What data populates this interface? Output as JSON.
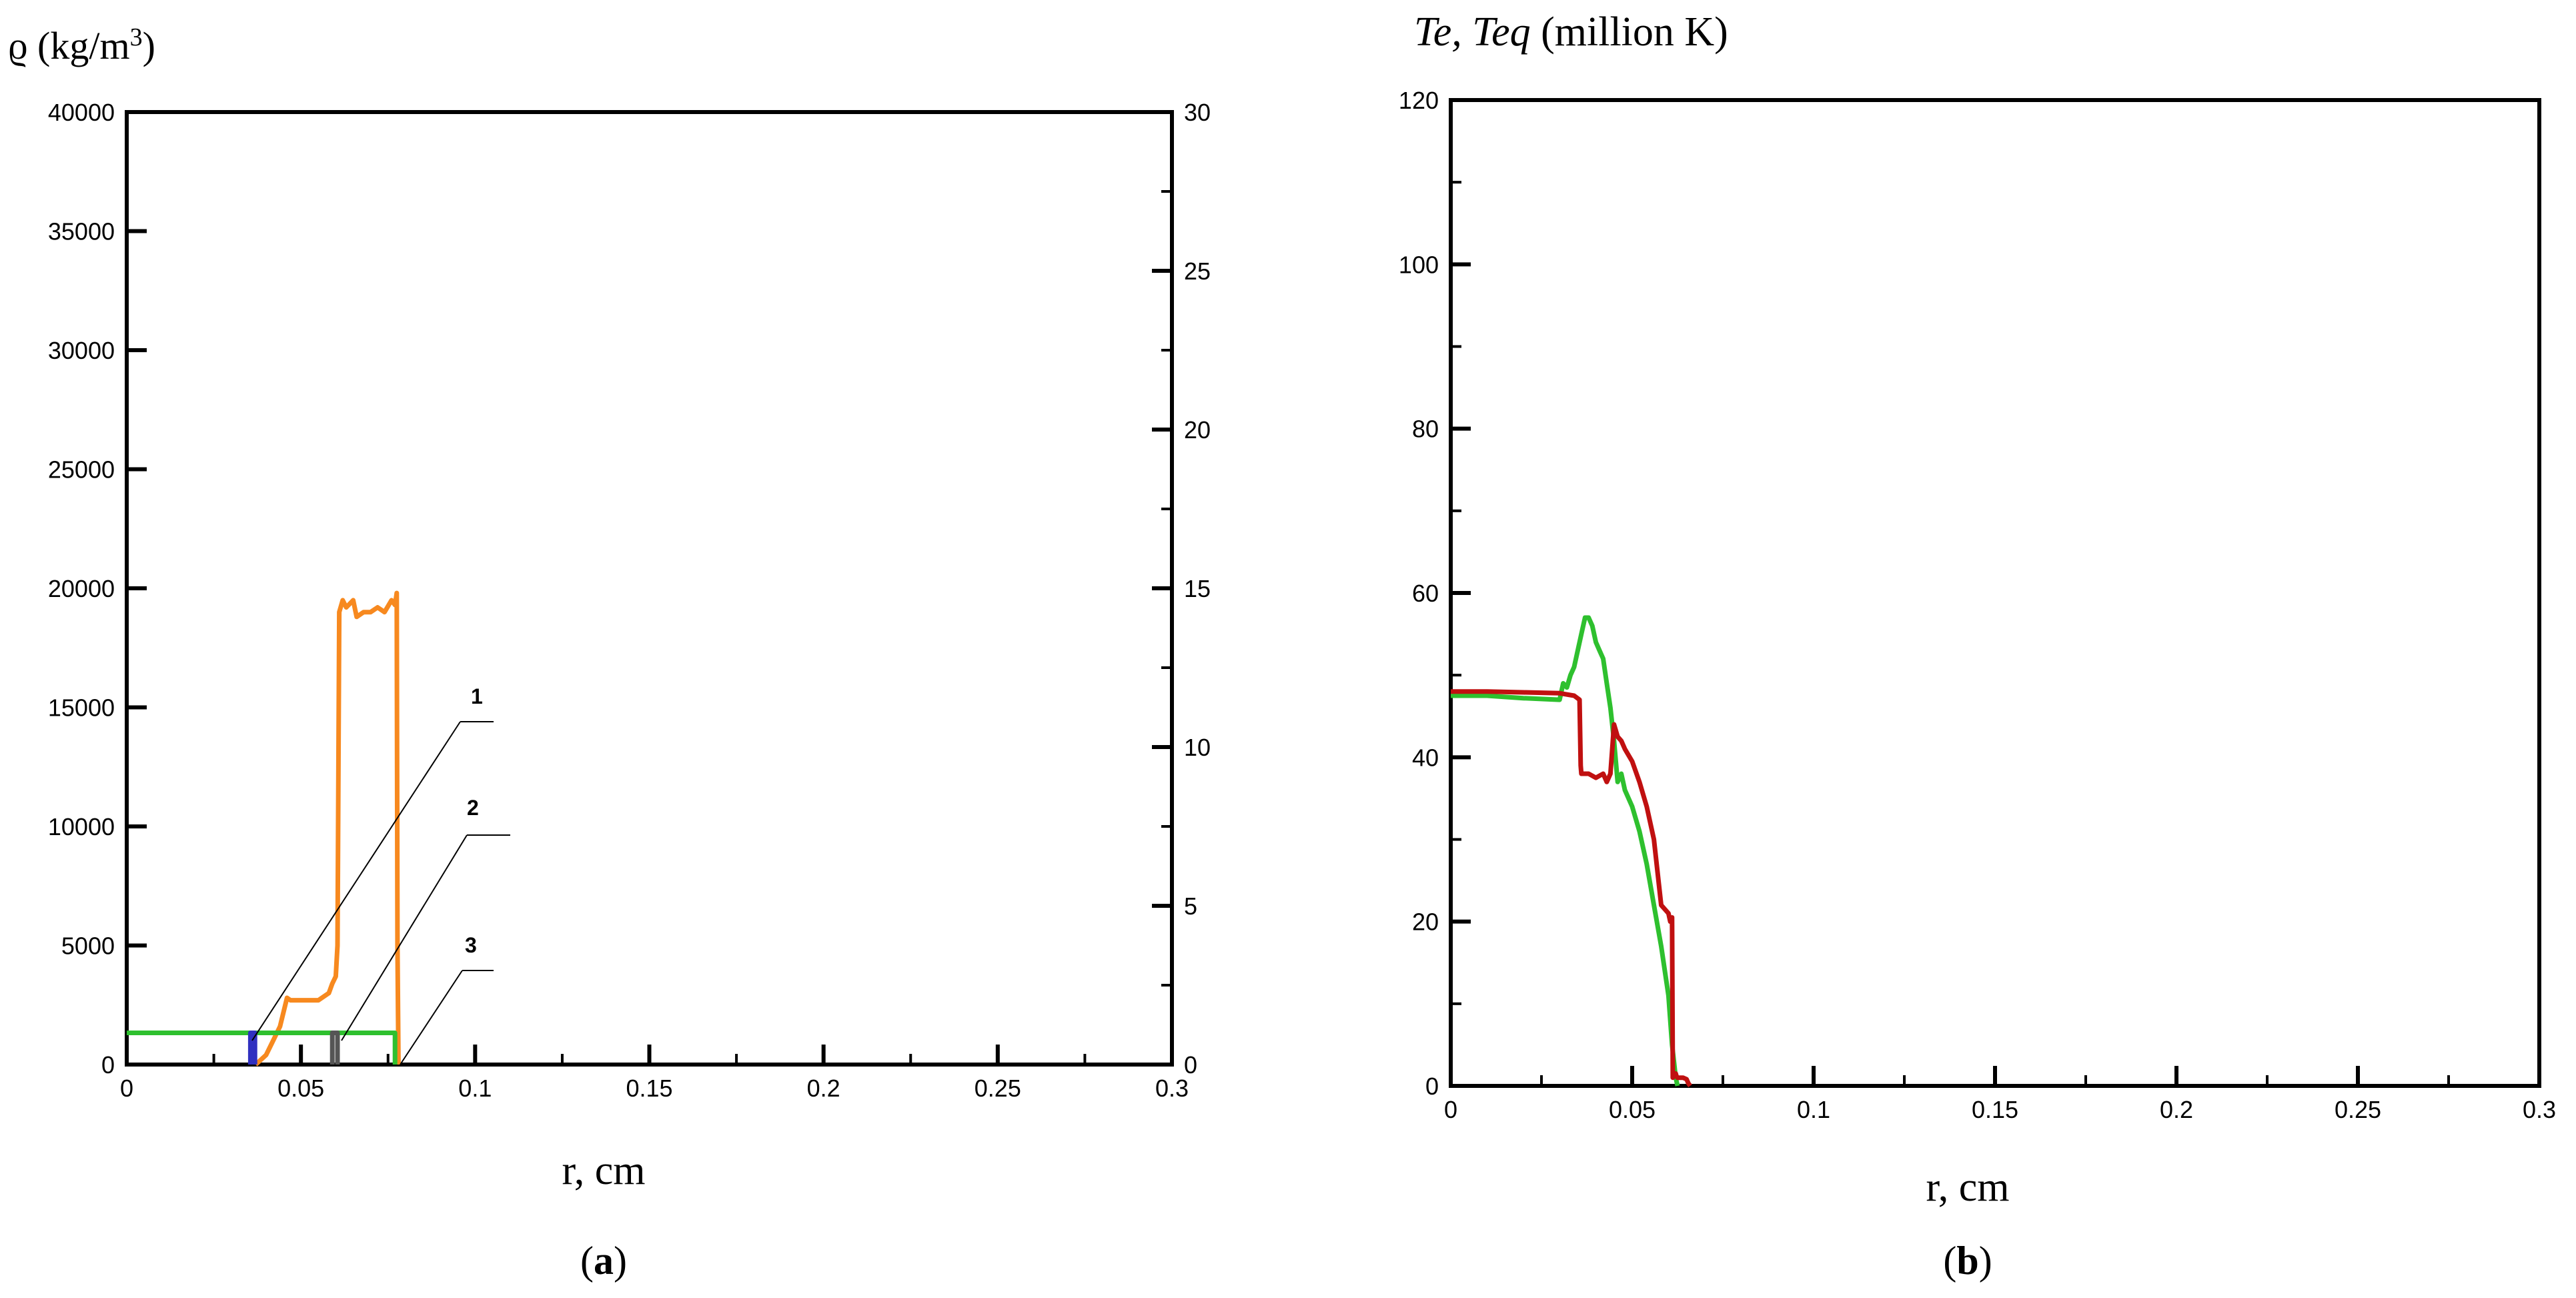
{
  "chart_data": [
    {
      "panel_label": "(a)",
      "panel_letter": "a",
      "type": "line",
      "ylabel": "ϱ (kg/m³)",
      "ylabel_main": "ϱ (kg/m",
      "ylabel_sup": "3",
      "ylabel_end": ")",
      "xlabel": "r, cm",
      "xlim": [
        0,
        0.3
      ],
      "ylim": [
        0,
        40000
      ],
      "y2lim": [
        0,
        30
      ],
      "xticks": [
        "0",
        "0.05",
        "0.1",
        "0.15",
        "0.2",
        "0.25",
        "0.3"
      ],
      "yticks": [
        "0",
        "5000",
        "10000",
        "15000",
        "20000",
        "25000",
        "30000",
        "35000",
        "40000"
      ],
      "y2ticks": [
        "0",
        "5",
        "10",
        "15",
        "20",
        "25",
        "30"
      ],
      "annotations": [
        "1",
        "2",
        "3"
      ],
      "series": [
        {
          "color": "#f7891f",
          "axis": "left",
          "x": [
            0.037,
            0.04,
            0.042,
            0.044,
            0.046,
            0.047,
            0.05,
            0.055,
            0.058,
            0.059,
            0.06,
            0.0605,
            0.061,
            0.062,
            0.063,
            0.065,
            0.066,
            0.068,
            0.07,
            0.072,
            0.074,
            0.076,
            0.077,
            0.0775,
            0.0777,
            0.078
          ],
          "y": [
            0,
            400,
            1000,
            1600,
            2800,
            2700,
            2700,
            2700,
            3000,
            3400,
            3700,
            5000,
            19000,
            19500,
            19200,
            19500,
            18800,
            19000,
            19000,
            19200,
            19000,
            19500,
            19300,
            19800,
            5000,
            0
          ]
        },
        {
          "color": "#2ec02e",
          "axis": "left",
          "x": [
            0,
            0.077,
            0.077
          ],
          "y": [
            1330,
            1330,
            0
          ]
        },
        {
          "color": "#3030c0",
          "axis": "left",
          "x": [
            0.0355,
            0.0355,
            0.0368,
            0.0368
          ],
          "y": [
            0,
            1330,
            1330,
            0
          ]
        },
        {
          "color": "#555555",
          "axis": "left",
          "x": [
            0.059,
            0.059,
            0.0605,
            0.0605
          ],
          "y": [
            0,
            1330,
            1330,
            0
          ]
        }
      ]
    },
    {
      "panel_label": "(b)",
      "panel_letter": "b",
      "type": "line",
      "ylabel": "Te, Teq (million K)",
      "ylabel_italic": "Te, Teq",
      "ylabel_rest": " (million K)",
      "xlabel": "r, cm",
      "xlim": [
        0,
        0.3
      ],
      "ylim": [
        0,
        120
      ],
      "xticks": [
        "0",
        "0.05",
        "0.1",
        "0.15",
        "0.2",
        "0.25",
        "0.3"
      ],
      "yticks": [
        "0",
        "20",
        "40",
        "60",
        "80",
        "100",
        "120"
      ],
      "series": [
        {
          "color": "#2ec02e",
          "x": [
            0,
            0.01,
            0.02,
            0.03,
            0.031,
            0.032,
            0.033,
            0.034,
            0.035,
            0.036,
            0.037,
            0.038,
            0.039,
            0.04,
            0.041,
            0.042,
            0.043,
            0.044,
            0.045,
            0.046,
            0.047,
            0.048,
            0.05,
            0.052,
            0.054,
            0.056,
            0.058,
            0.06,
            0.061,
            0.062,
            0.0625
          ],
          "y": [
            47.5,
            47.5,
            47.2,
            47.0,
            49.0,
            48.5,
            50.0,
            51.0,
            53.0,
            55.0,
            57.0,
            57.0,
            56.0,
            54.0,
            53.0,
            52.0,
            49.0,
            46.0,
            42.0,
            37.0,
            38.0,
            36.0,
            34.0,
            31.0,
            27.0,
            22.0,
            17.0,
            11.0,
            5.0,
            1.0,
            0
          ]
        },
        {
          "color": "#c01010",
          "x": [
            0,
            0.01,
            0.02,
            0.03,
            0.034,
            0.0355,
            0.0358,
            0.036,
            0.038,
            0.04,
            0.042,
            0.043,
            0.044,
            0.045,
            0.046,
            0.047,
            0.048,
            0.05,
            0.052,
            0.054,
            0.056,
            0.058,
            0.059,
            0.06,
            0.0605,
            0.061,
            0.0612,
            0.0615,
            0.062,
            0.0622,
            0.0625,
            0.064,
            0.065,
            0.0655,
            0.066
          ],
          "y": [
            48.0,
            48.0,
            47.9,
            47.8,
            47.5,
            47.0,
            39.0,
            38.0,
            38.0,
            37.5,
            38.0,
            37.0,
            38.0,
            44.0,
            42.5,
            42.0,
            41.0,
            39.5,
            37.0,
            34.0,
            30.0,
            22.0,
            21.5,
            21.0,
            20.0,
            20.5,
            1.0,
            1.2,
            1.5,
            1.2,
            1.0,
            1.0,
            0.8,
            0.3,
            0
          ]
        }
      ]
    }
  ]
}
